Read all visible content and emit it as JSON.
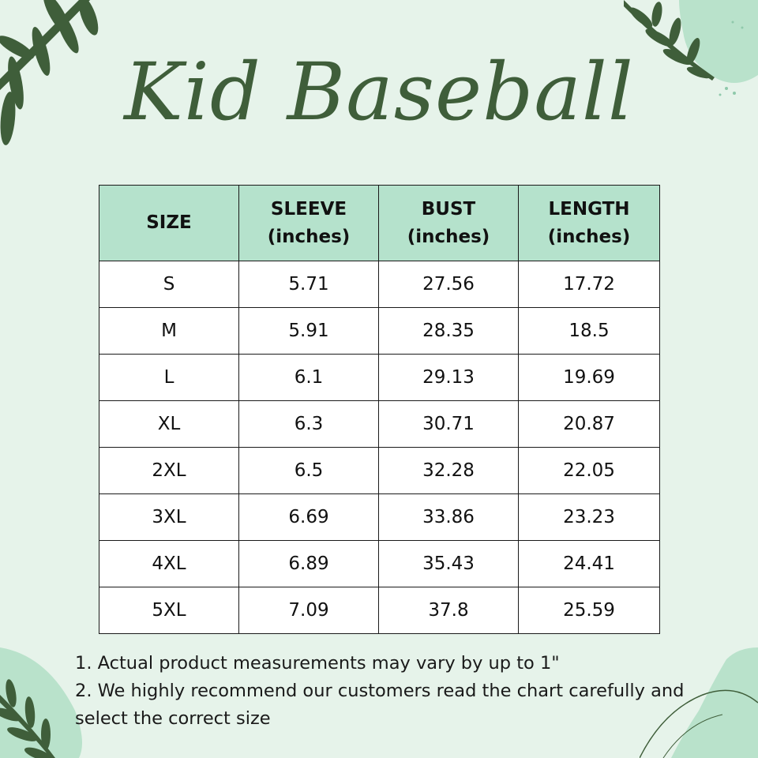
{
  "title": "Kid Baseball",
  "table": {
    "headers": [
      "SIZE",
      "SLEEVE\n(inches)",
      "BUST\n(inches)",
      "LENGTH\n(inches)"
    ],
    "rows": [
      [
        "S",
        "5.71",
        "27.56",
        "17.72"
      ],
      [
        "M",
        "5.91",
        "28.35",
        "18.5"
      ],
      [
        "L",
        "6.1",
        "29.13",
        "19.69"
      ],
      [
        "XL",
        "6.3",
        "30.71",
        "20.87"
      ],
      [
        "2XL",
        "6.5",
        "32.28",
        "22.05"
      ],
      [
        "3XL",
        "6.69",
        "33.86",
        "23.23"
      ],
      [
        "4XL",
        "6.89",
        "35.43",
        "24.41"
      ],
      [
        "5XL",
        "7.09",
        "37.8",
        "25.59"
      ]
    ]
  },
  "notes": [
    "1. Actual product measurements may vary by up to 1\"",
    "2. We highly recommend our customers read the chart carefully and select the correct size"
  ],
  "colors": {
    "background": "#e6f3ea",
    "header": "#b5e2cc",
    "title": "#3f5e3a",
    "leaf": "#3f5e3a",
    "blob": "#b9e2cb"
  },
  "decorations": [
    "leaf-branch-top-left",
    "leaf-branch-top-right",
    "leaf-branch-bottom-left",
    "blob-bottom-right"
  ]
}
